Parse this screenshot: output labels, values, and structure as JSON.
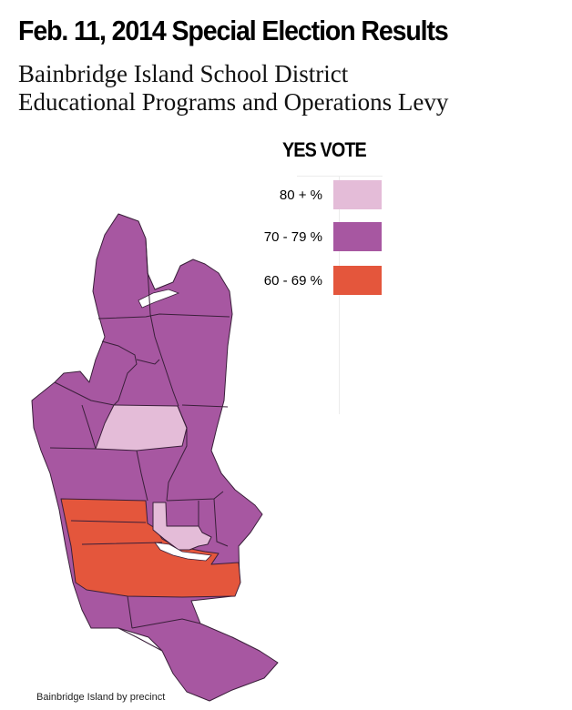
{
  "title": "Feb. 11, 2014 Special Election Results",
  "subtitle": {
    "line1": "Bainbridge Island School District",
    "line2": "Educational Programs and Operations Levy"
  },
  "legend": {
    "title": "YES VOTE",
    "items": [
      {
        "label": "80 + %",
        "color": "#e4bcd8"
      },
      {
        "label": "70 - 79 %",
        "color": "#a757a1"
      },
      {
        "label": "60 - 69 %",
        "color": "#e4563c"
      }
    ]
  },
  "map": {
    "region_colors": {
      "yes_80_plus": "#e4bcd8",
      "yes_70_79": "#a757a1",
      "yes_60_69": "#e4563c"
    }
  },
  "credit": "Bainbridge Island by precinct"
}
